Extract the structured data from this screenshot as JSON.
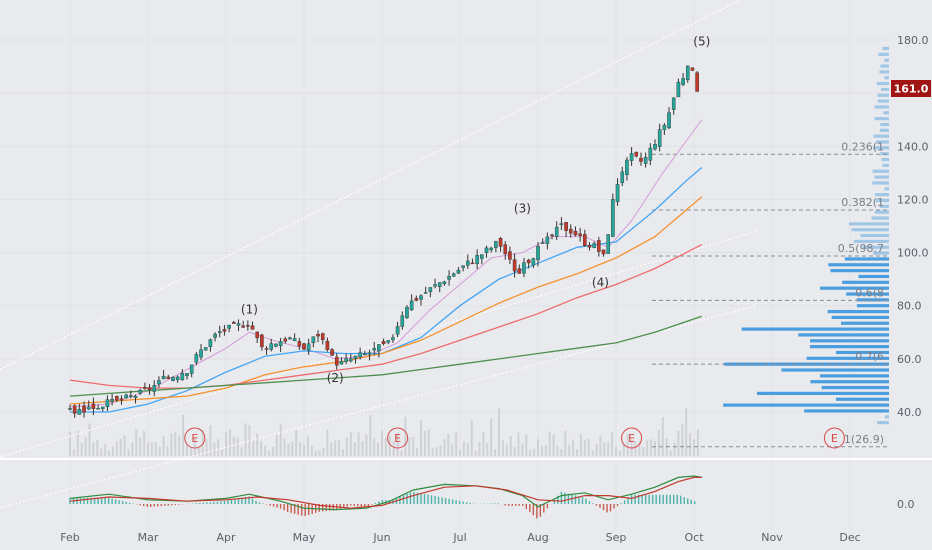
{
  "chart_data": [
    {
      "type": "candlestick",
      "x_ticks": [
        "Feb",
        "Mar",
        "Apr",
        "May",
        "Jun",
        "Jul",
        "Aug",
        "Sep",
        "Oct",
        "Nov",
        "Dec"
      ],
      "y_ticks": [
        "180.0",
        "160.0",
        "140.0",
        "120.0",
        "100.0",
        "80.0",
        "60.0",
        "40.0"
      ],
      "ylim": [
        30,
        186
      ],
      "last_price": "161.0",
      "wave_labels": [
        "(1)",
        "(2)",
        "(3)",
        "(4)",
        "(5)"
      ],
      "wave_points": [
        {
          "label": "(1)",
          "month": 2.3,
          "price": 74
        },
        {
          "label": "(2)",
          "month": 3.4,
          "price": 58
        },
        {
          "label": "(3)",
          "month": 5.8,
          "price": 112
        },
        {
          "label": "(4)",
          "month": 6.8,
          "price": 94
        },
        {
          "label": "(5)",
          "month": 8.1,
          "price": 175
        }
      ],
      "fib_labels": [
        "0.236(1",
        "0.382(1",
        "0.5(98.7",
        "0.6(8",
        "0.7(6",
        "1(26.9)"
      ],
      "fib_levels": [
        137,
        116,
        98.7,
        82,
        58,
        26.9
      ],
      "earnings_marker": "E",
      "earnings_months": [
        1.6,
        4.2,
        7.2,
        9.8
      ],
      "series": [
        {
          "name": "close",
          "points": [
            [
              0.0,
              40
            ],
            [
              0.3,
              42
            ],
            [
              0.6,
              44
            ],
            [
              0.9,
              47
            ],
            [
              1.2,
              52
            ],
            [
              1.5,
              56
            ],
            [
              1.7,
              64
            ],
            [
              1.9,
              70
            ],
            [
              2.1,
              72
            ],
            [
              2.3,
              74
            ],
            [
              2.45,
              64
            ],
            [
              2.6,
              66
            ],
            [
              2.8,
              68
            ],
            [
              3.0,
              64
            ],
            [
              3.2,
              70
            ],
            [
              3.3,
              62
            ],
            [
              3.45,
              58
            ],
            [
              3.6,
              60
            ],
            [
              3.8,
              62
            ],
            [
              3.95,
              64
            ],
            [
              4.1,
              66
            ],
            [
              4.3,
              80
            ],
            [
              4.6,
              86
            ],
            [
              4.9,
              92
            ],
            [
              5.1,
              96
            ],
            [
              5.3,
              100
            ],
            [
              5.5,
              104
            ],
            [
              5.65,
              96
            ],
            [
              5.75,
              92
            ],
            [
              5.9,
              98
            ],
            [
              6.1,
              104
            ],
            [
              6.3,
              110
            ],
            [
              6.45,
              108
            ],
            [
              6.6,
              104
            ],
            [
              6.75,
              102
            ],
            [
              6.85,
              98
            ],
            [
              6.95,
              118
            ],
            [
              7.05,
              130
            ],
            [
              7.2,
              136
            ],
            [
              7.35,
              134
            ],
            [
              7.5,
              142
            ],
            [
              7.65,
              150
            ],
            [
              7.8,
              164
            ],
            [
              7.95,
              170
            ],
            [
              8.05,
              161
            ]
          ]
        },
        {
          "name": "ma-short",
          "points": [
            [
              0.0,
              42
            ],
            [
              0.5,
              43
            ],
            [
              1.0,
              48
            ],
            [
              1.5,
              56
            ],
            [
              2.0,
              64
            ],
            [
              2.3,
              70
            ],
            [
              2.6,
              67
            ],
            [
              3.0,
              64
            ],
            [
              3.4,
              60
            ],
            [
              3.8,
              61
            ],
            [
              4.2,
              66
            ],
            [
              4.6,
              78
            ],
            [
              5.0,
              88
            ],
            [
              5.4,
              98
            ],
            [
              5.8,
              100
            ],
            [
              6.2,
              106
            ],
            [
              6.6,
              106
            ],
            [
              6.9,
              102
            ],
            [
              7.2,
              112
            ],
            [
              7.6,
              130
            ],
            [
              7.9,
              142
            ],
            [
              8.1,
              150
            ]
          ]
        },
        {
          "name": "ma-20",
          "points": [
            [
              0.0,
              40
            ],
            [
              0.5,
              40
            ],
            [
              1.0,
              43
            ],
            [
              1.5,
              48
            ],
            [
              2.0,
              55
            ],
            [
              2.5,
              61
            ],
            [
              3.0,
              63
            ],
            [
              3.5,
              62
            ],
            [
              4.0,
              62
            ],
            [
              4.5,
              68
            ],
            [
              5.0,
              80
            ],
            [
              5.5,
              90
            ],
            [
              6.0,
              96
            ],
            [
              6.5,
              102
            ],
            [
              7.0,
              104
            ],
            [
              7.5,
              116
            ],
            [
              7.9,
              127
            ],
            [
              8.1,
              132
            ]
          ]
        },
        {
          "name": "ma-50",
          "points": [
            [
              0.0,
              43
            ],
            [
              0.5,
              44
            ],
            [
              1.0,
              45
            ],
            [
              1.5,
              46
            ],
            [
              2.0,
              49
            ],
            [
              2.5,
              54
            ],
            [
              3.0,
              57
            ],
            [
              3.5,
              59
            ],
            [
              4.0,
              62
            ],
            [
              4.5,
              67
            ],
            [
              5.0,
              74
            ],
            [
              5.5,
              81
            ],
            [
              6.0,
              87
            ],
            [
              6.5,
              92
            ],
            [
              7.0,
              98
            ],
            [
              7.5,
              106
            ],
            [
              8.1,
              121
            ]
          ]
        },
        {
          "name": "ma-100",
          "points": [
            [
              0.0,
              52
            ],
            [
              0.5,
              50
            ],
            [
              1.0,
              49
            ],
            [
              1.5,
              49
            ],
            [
              2.0,
              50
            ],
            [
              2.5,
              52
            ],
            [
              3.0,
              54
            ],
            [
              3.5,
              56
            ],
            [
              4.0,
              58
            ],
            [
              4.5,
              62
            ],
            [
              5.0,
              67
            ],
            [
              5.5,
              72
            ],
            [
              6.0,
              77
            ],
            [
              6.5,
              83
            ],
            [
              7.0,
              88
            ],
            [
              7.5,
              94
            ],
            [
              8.1,
              103
            ]
          ]
        },
        {
          "name": "ma-200",
          "points": [
            [
              0.0,
              46
            ],
            [
              0.5,
              47
            ],
            [
              1.0,
              48
            ],
            [
              1.5,
              49
            ],
            [
              2.0,
              50
            ],
            [
              2.5,
              51
            ],
            [
              3.0,
              52
            ],
            [
              3.5,
              53
            ],
            [
              4.0,
              54
            ],
            [
              4.5,
              56
            ],
            [
              5.0,
              58
            ],
            [
              5.5,
              60
            ],
            [
              6.0,
              62
            ],
            [
              6.5,
              64
            ],
            [
              7.0,
              66
            ],
            [
              7.5,
              70
            ],
            [
              8.1,
              76
            ]
          ]
        }
      ],
      "colors": {
        "up": "#26a69a",
        "down": "#c0392b",
        "outline": "#333333",
        "ma-short": "#d69ad8",
        "ma-20": "#42a5f5",
        "ma-50": "#f5922f",
        "ma-100": "#ef6b6b",
        "ma-200": "#4e8f4e",
        "last_price_bg": "#a01414",
        "volume_profile": "#4a9ee0"
      }
    },
    {
      "type": "line",
      "y_ticks": [
        "0.0"
      ],
      "ylim": [
        -1.0,
        1.3
      ],
      "series": [
        {
          "name": "macd",
          "points": [
            [
              0.0,
              0.2
            ],
            [
              0.5,
              0.35
            ],
            [
              1.0,
              0.15
            ],
            [
              1.5,
              0.1
            ],
            [
              2.0,
              0.2
            ],
            [
              2.3,
              0.35
            ],
            [
              2.7,
              0.1
            ],
            [
              3.0,
              -0.15
            ],
            [
              3.4,
              -0.2
            ],
            [
              3.8,
              -0.15
            ],
            [
              4.1,
              0.1
            ],
            [
              4.4,
              0.5
            ],
            [
              4.8,
              0.7
            ],
            [
              5.2,
              0.65
            ],
            [
              5.5,
              0.55
            ],
            [
              5.8,
              0.3
            ],
            [
              6.0,
              -0.1
            ],
            [
              6.3,
              0.3
            ],
            [
              6.6,
              0.4
            ],
            [
              6.9,
              0.15
            ],
            [
              7.2,
              0.35
            ],
            [
              7.5,
              0.6
            ],
            [
              7.8,
              0.95
            ],
            [
              8.0,
              1.0
            ],
            [
              8.1,
              0.95
            ]
          ]
        },
        {
          "name": "signal",
          "points": [
            [
              0.0,
              0.1
            ],
            [
              0.5,
              0.25
            ],
            [
              1.0,
              0.2
            ],
            [
              1.5,
              0.1
            ],
            [
              2.0,
              0.15
            ],
            [
              2.4,
              0.25
            ],
            [
              2.8,
              0.15
            ],
            [
              3.2,
              -0.05
            ],
            [
              3.6,
              -0.15
            ],
            [
              4.0,
              -0.05
            ],
            [
              4.4,
              0.3
            ],
            [
              4.8,
              0.6
            ],
            [
              5.2,
              0.65
            ],
            [
              5.6,
              0.5
            ],
            [
              6.0,
              0.15
            ],
            [
              6.3,
              0.1
            ],
            [
              6.6,
              0.3
            ],
            [
              6.9,
              0.3
            ],
            [
              7.2,
              0.2
            ],
            [
              7.5,
              0.45
            ],
            [
              7.8,
              0.8
            ],
            [
              8.0,
              0.95
            ],
            [
              8.1,
              0.95
            ]
          ]
        }
      ],
      "colors": {
        "macd": "#2e8b3e",
        "signal": "#c0392b",
        "hist_up": "#26a69a",
        "hist_down": "#c0392b"
      }
    }
  ]
}
